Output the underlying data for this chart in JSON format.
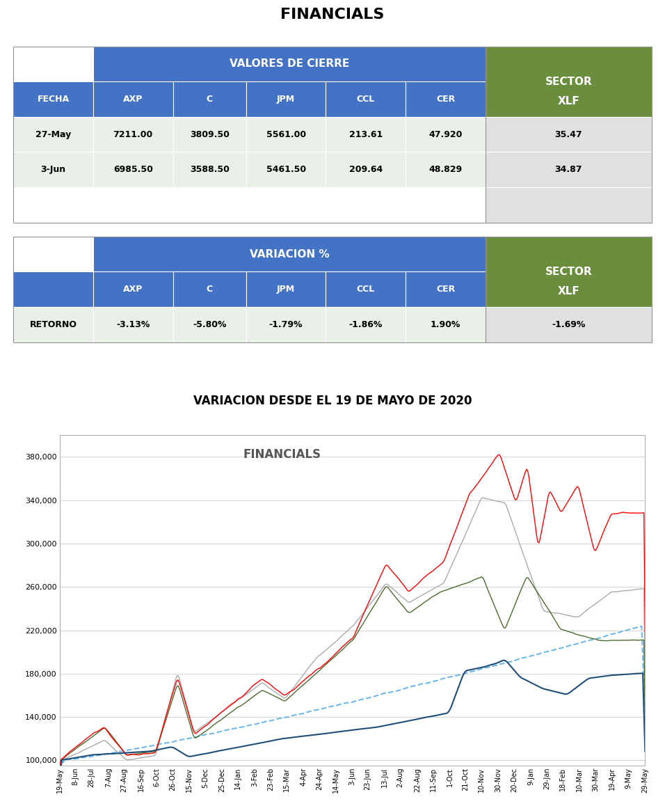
{
  "title": "FINANCIALS",
  "subtitle_chart": "VARIACION DESDE EL 19 DE MAYO DE 2020",
  "chart_inner_title": "FINANCIALS",
  "table1_header1": "VALORES DE CIERRE",
  "table1_sector": "SECTOR",
  "table1_xlf": "XLF",
  "col_headers": [
    "FECHA",
    "AXP",
    "C",
    "JPM",
    "CCL",
    "CER"
  ],
  "row1": [
    "27-May",
    "7211.00",
    "3809.50",
    "5561.00",
    "213.61",
    "47.920"
  ],
  "row2": [
    "3-Jun",
    "6985.50",
    "3588.50",
    "5461.50",
    "209.64",
    "48.829"
  ],
  "sector_row1": "35.47",
  "sector_row2": "34.87",
  "table2_header1": "VARIACION %",
  "retorno_label": "RETORNO",
  "retorno_values": [
    "-3.13%",
    "-5.80%",
    "-1.79%",
    "-1.86%",
    "1.90%"
  ],
  "sector_retorno": "-1.69%",
  "blue_header_color": "#4472C4",
  "green_header_color": "#6B8E3E",
  "light_green_row_color": "#E8F0E8",
  "light_gray_row_color": "#E0E0E0",
  "white_color": "#FFFFFF",
  "axp_color": "#FF0000",
  "c_color": "#4B6B2E",
  "jpm_color": "#AAAAAA",
  "ccl_color": "#1F4E79",
  "cer_color": "#70B8E8",
  "y_ticks": [
    100.0,
    140.0,
    180.0,
    220.0,
    260.0,
    300.0,
    340.0,
    380.0
  ],
  "x_labels": [
    "19-May",
    "8-Jun",
    "28-Jul",
    "7-Aug",
    "27-Aug",
    "16-Sep",
    "6-Oct",
    "26-Oct",
    "15-Nov",
    "5-Dec",
    "25-Dec",
    "14-Jan",
    "3-Feb",
    "23-Feb",
    "15-Mar",
    "4-Apr",
    "24-Apr",
    "14-May",
    "3-Jun",
    "23-Jun",
    "13-Jul",
    "2-Aug",
    "22-Aug",
    "11-Sep",
    "1-Oct",
    "21-Oct",
    "10-Nov",
    "30-Nov",
    "20-Dec",
    "9-Jan",
    "29-Jan",
    "18-Feb",
    "10-Mar",
    "30-Mar",
    "19-Apr",
    "9-May",
    "29-May"
  ]
}
